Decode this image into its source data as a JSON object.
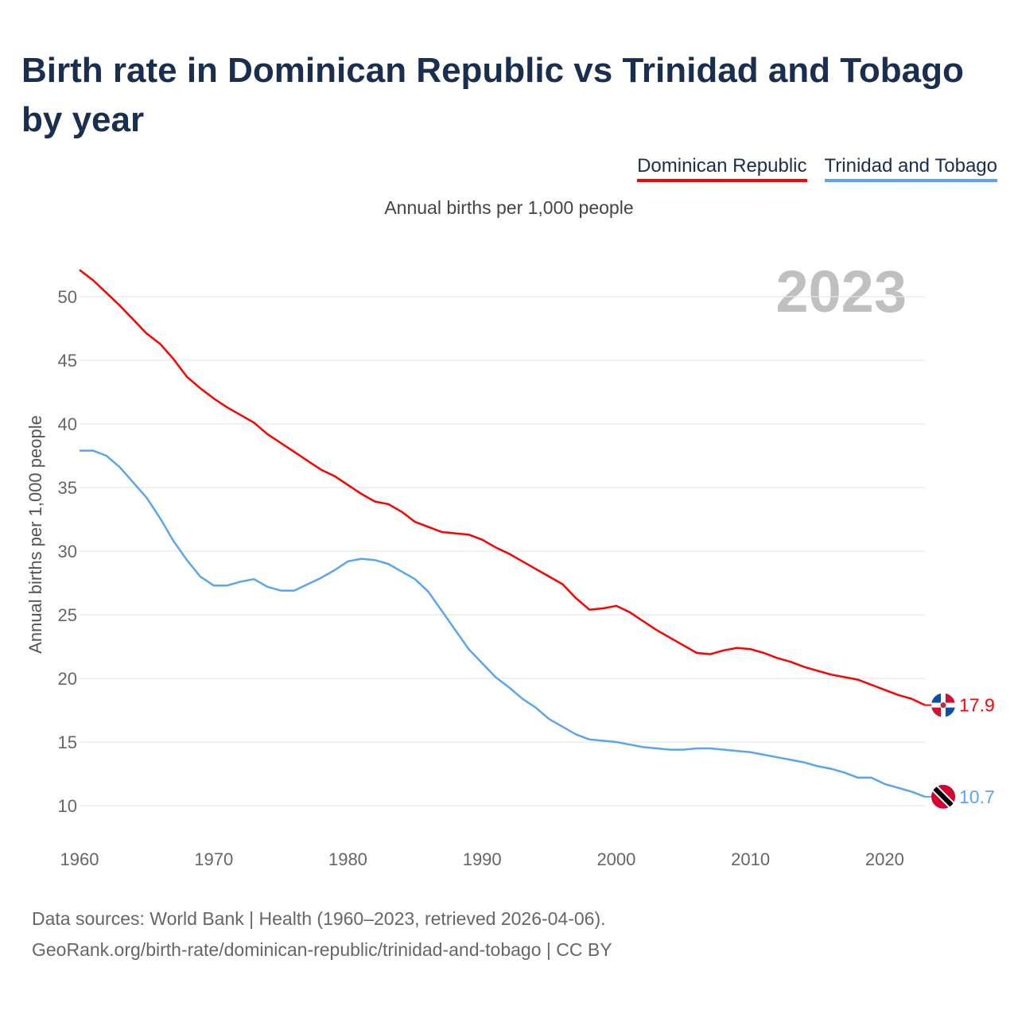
{
  "title": "Birth rate in Dominican Republic vs Trinidad and Tobago by year",
  "footer": {
    "line1": "Data sources: World Bank | Health (1960–2023, retrieved 2026-04-06).",
    "line2": "GeoRank.org/birth-rate/dominican-republic/trinidad-and-tobago | CC BY"
  },
  "chart_data": {
    "type": "line",
    "title": "Birth rate in Dominican Republic vs Trinidad and Tobago by year",
    "subtitle": "Annual births per 1,000 people",
    "ylabel": "Annual births per 1,000 people",
    "xlabel": "",
    "year_label": "2023",
    "ylim": [
      7,
      53
    ],
    "xlim": [
      1960,
      2023
    ],
    "yticks": [
      10,
      15,
      20,
      25,
      30,
      35,
      40,
      45,
      50
    ],
    "xticks": [
      1960,
      1970,
      1980,
      1990,
      2000,
      2010,
      2020
    ],
    "grid": true,
    "legend": "top-right",
    "x": [
      1960,
      1961,
      1962,
      1963,
      1964,
      1965,
      1966,
      1967,
      1968,
      1969,
      1970,
      1971,
      1972,
      1973,
      1974,
      1975,
      1976,
      1977,
      1978,
      1979,
      1980,
      1981,
      1982,
      1983,
      1984,
      1985,
      1986,
      1987,
      1988,
      1989,
      1990,
      1991,
      1992,
      1993,
      1994,
      1995,
      1996,
      1997,
      1998,
      1999,
      2000,
      2001,
      2002,
      2003,
      2004,
      2005,
      2006,
      2007,
      2008,
      2009,
      2010,
      2011,
      2012,
      2013,
      2014,
      2015,
      2016,
      2017,
      2018,
      2019,
      2020,
      2021,
      2022,
      2023
    ],
    "series": [
      {
        "name": "Dominican Republic",
        "color": "#ff0000",
        "end_label": "17.9",
        "values": [
          52.1,
          51.3,
          50.3,
          49.3,
          48.2,
          47.1,
          46.3,
          45.1,
          43.7,
          42.8,
          42.0,
          41.3,
          40.7,
          40.1,
          39.2,
          38.5,
          37.8,
          37.1,
          36.4,
          35.9,
          35.2,
          34.5,
          33.9,
          33.7,
          33.1,
          32.3,
          31.9,
          31.5,
          31.4,
          31.3,
          30.9,
          30.3,
          29.8,
          29.2,
          28.6,
          28.0,
          27.4,
          26.3,
          25.4,
          25.5,
          25.7,
          25.2,
          24.5,
          23.8,
          23.2,
          22.6,
          22.0,
          21.9,
          22.2,
          22.4,
          22.3,
          22.0,
          21.6,
          21.3,
          20.9,
          20.6,
          20.3,
          20.1,
          19.9,
          19.5,
          19.1,
          18.7,
          18.4,
          17.9
        ]
      },
      {
        "name": "Trinidad and Tobago",
        "color": "#5aa5ee",
        "end_label": "10.7",
        "values": [
          37.9,
          37.9,
          37.5,
          36.6,
          35.4,
          34.2,
          32.6,
          30.8,
          29.3,
          28.0,
          27.3,
          27.3,
          27.6,
          27.8,
          27.2,
          26.9,
          26.9,
          27.4,
          27.9,
          28.5,
          29.2,
          29.4,
          29.3,
          29.0,
          28.4,
          27.8,
          26.8,
          25.3,
          23.8,
          22.3,
          21.2,
          20.1,
          19.3,
          18.4,
          17.7,
          16.8,
          16.2,
          15.6,
          15.2,
          15.1,
          15.0,
          14.8,
          14.6,
          14.5,
          14.4,
          14.4,
          14.5,
          14.5,
          14.4,
          14.3,
          14.2,
          14.0,
          13.8,
          13.6,
          13.4,
          13.1,
          12.9,
          12.6,
          12.2,
          12.2,
          11.7,
          11.4,
          11.1,
          10.7
        ]
      }
    ]
  }
}
